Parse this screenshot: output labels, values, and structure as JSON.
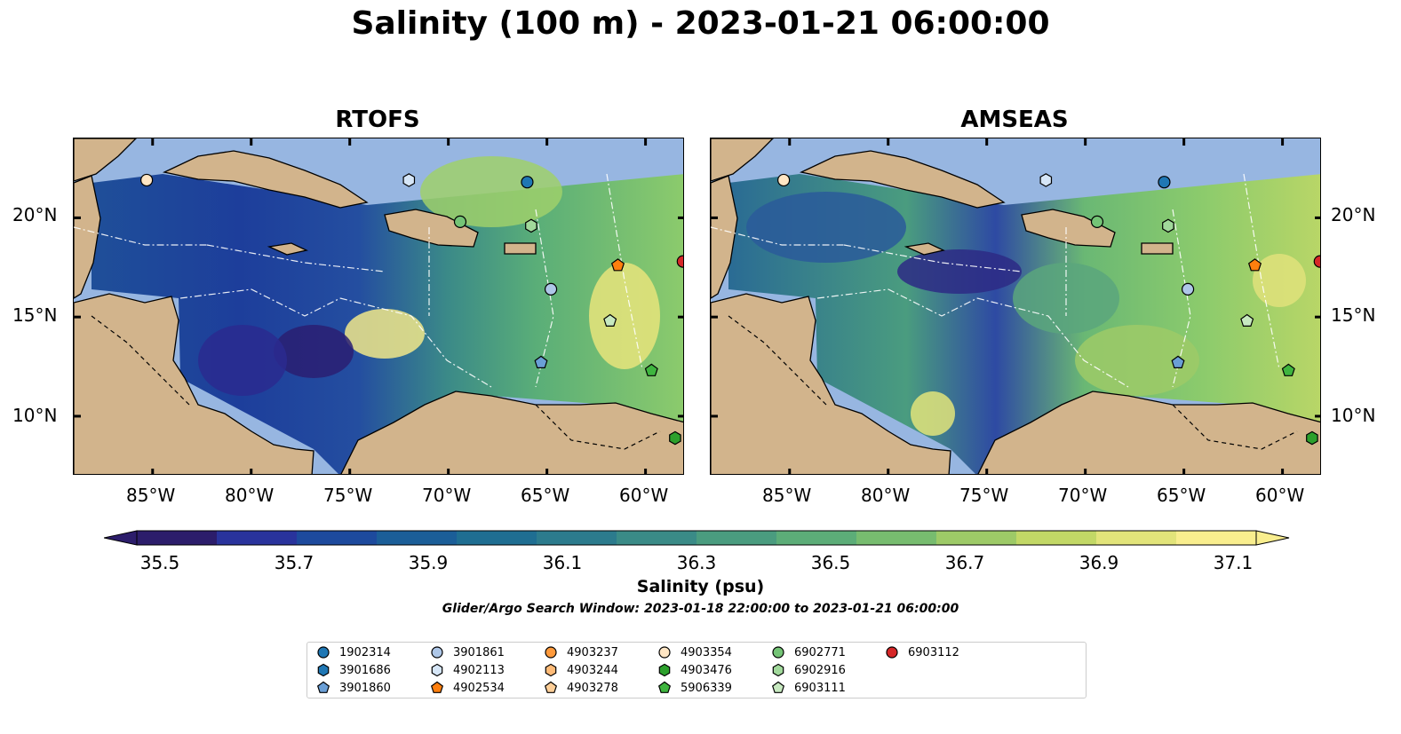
{
  "title": "Salinity (100 m) - 2023-01-21 06:00:00",
  "panels": [
    {
      "title": "RTOFS"
    },
    {
      "title": "AMSEAS"
    }
  ],
  "lon_ticks": [
    "85°W",
    "80°W",
    "75°W",
    "70°W",
    "65°W",
    "60°W"
  ],
  "lat_ticks": [
    "20°N",
    "15°N",
    "10°N"
  ],
  "colorbar": {
    "label": "Salinity (psu)",
    "ticks": [
      "35.5",
      "35.7",
      "35.9",
      "36.1",
      "36.3",
      "36.5",
      "36.7",
      "36.9",
      "37.1"
    ],
    "colors": [
      "#2c1d6b",
      "#29339c",
      "#1d4a9d",
      "#1b5e98",
      "#1f6e92",
      "#2c7b8d",
      "#3a8b87",
      "#4a9c7f",
      "#5cad78",
      "#77bc6f",
      "#9dca67",
      "#c2d866",
      "#e2e47a",
      "#f9ee8e"
    ]
  },
  "search_window": "Glider/Argo Search Window: 2023-01-18 22:00:00 to 2023-01-21 06:00:00",
  "legend": [
    {
      "id": "1902314",
      "marker": "circle",
      "color": "#1f77b4"
    },
    {
      "id": "3901686",
      "marker": "hexagon",
      "color": "#1f77b4"
    },
    {
      "id": "3901860",
      "marker": "pentagon",
      "color": "#6a9fd6"
    },
    {
      "id": "3901861",
      "marker": "circle",
      "color": "#aec7e8"
    },
    {
      "id": "4902113",
      "marker": "hexagon",
      "color": "#d6e6f7"
    },
    {
      "id": "4902534",
      "marker": "pentagon",
      "color": "#ff7f0e"
    },
    {
      "id": "4903237",
      "marker": "circle",
      "color": "#ff9a3c"
    },
    {
      "id": "4903244",
      "marker": "hexagon",
      "color": "#ffbb78"
    },
    {
      "id": "4903278",
      "marker": "pentagon",
      "color": "#ffcf98"
    },
    {
      "id": "4903354",
      "marker": "circle",
      "color": "#ffe6c4"
    },
    {
      "id": "4903476",
      "marker": "hexagon",
      "color": "#2ca02c"
    },
    {
      "id": "5906339",
      "marker": "pentagon",
      "color": "#3fb53f"
    },
    {
      "id": "6902771",
      "marker": "circle",
      "color": "#74c476"
    },
    {
      "id": "6902916",
      "marker": "hexagon",
      "color": "#a1d99b"
    },
    {
      "id": "6903111",
      "marker": "pentagon",
      "color": "#c7e9c0"
    },
    {
      "id": "6903112",
      "marker": "circle",
      "color": "#d62728"
    }
  ],
  "floats": [
    {
      "id": "4903354",
      "lon": -85.3,
      "lat": 21.9
    },
    {
      "id": "4902113",
      "lon": -72.0,
      "lat": 21.9
    },
    {
      "id": "1902314",
      "lon": -66.0,
      "lat": 21.8
    },
    {
      "id": "6902771",
      "lon": -69.4,
      "lat": 19.8
    },
    {
      "id": "6902916",
      "lon": -65.8,
      "lat": 19.6
    },
    {
      "id": "4902534",
      "lon": -61.4,
      "lat": 17.6
    },
    {
      "id": "6903112",
      "lon": -58.1,
      "lat": 17.8
    },
    {
      "id": "3901861",
      "lon": -64.8,
      "lat": 16.4
    },
    {
      "id": "6903111",
      "lon": -61.8,
      "lat": 14.8
    },
    {
      "id": "3901860",
      "lon": -65.3,
      "lat": 12.7
    },
    {
      "id": "5906339",
      "lon": -59.7,
      "lat": 12.3
    },
    {
      "id": "4903476",
      "lon": -58.5,
      "lat": 8.9
    }
  ],
  "map_extent": {
    "lon": [
      -89,
      -58
    ],
    "lat": [
      7,
      24
    ]
  }
}
